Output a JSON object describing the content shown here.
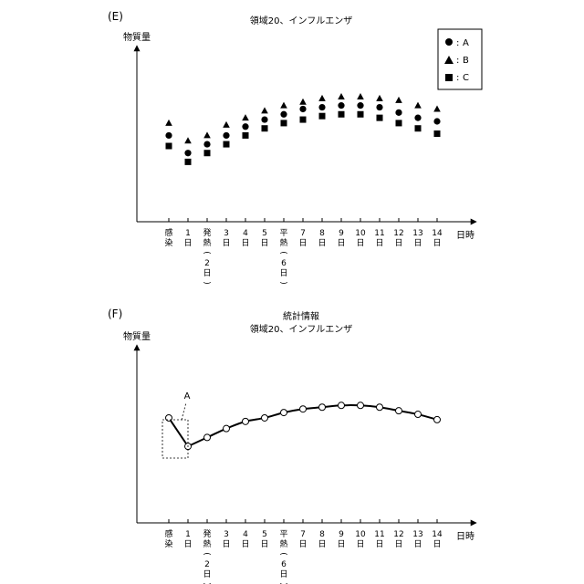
{
  "panels": {
    "e": {
      "label": "(E)"
    },
    "f": {
      "label": "(F)"
    }
  },
  "chart_data": [
    {
      "type": "scatter",
      "title": "領域20、インフルエンザ",
      "ylabel": "物質量",
      "xlabel": "日時",
      "categories": [
        "感染",
        "1日",
        "発熱(2日)",
        "3日",
        "4日",
        "5日",
        "平熱(6日)",
        "7日",
        "8日",
        "9日",
        "10日",
        "11日",
        "12日",
        "13日",
        "14日"
      ],
      "tick_labels": [
        [
          "感",
          "染"
        ],
        [
          "1",
          "日"
        ],
        [
          "発",
          "熱",
          "(",
          "2",
          "日",
          ")"
        ],
        [
          "3",
          "日"
        ],
        [
          "4",
          "日"
        ],
        [
          "5",
          "日"
        ],
        [
          "平",
          "熱",
          "(",
          "6",
          "日",
          ")"
        ],
        [
          "7",
          "日"
        ],
        [
          "8",
          "日"
        ],
        [
          "9",
          "日"
        ],
        [
          "10",
          "日"
        ],
        [
          "11",
          "日"
        ],
        [
          "12",
          "日"
        ],
        [
          "13",
          "日"
        ],
        [
          "14",
          "日"
        ]
      ],
      "ylim": [
        0,
        100
      ],
      "grid": false,
      "legend_position": "top-right",
      "series": [
        {
          "name": "A",
          "marker": "circle",
          "values": [
            49,
            39,
            44,
            49,
            54,
            58,
            61,
            64,
            65,
            66,
            66,
            65,
            62,
            59,
            57
          ]
        },
        {
          "name": "B",
          "marker": "triangle",
          "values": [
            56,
            46,
            49,
            55,
            59,
            63,
            66,
            68,
            70,
            71,
            71,
            70,
            69,
            66,
            64
          ]
        },
        {
          "name": "C",
          "marker": "square",
          "values": [
            43,
            34,
            39,
            44,
            49,
            53,
            56,
            58,
            60,
            61,
            61,
            59,
            56,
            53,
            50
          ]
        }
      ],
      "legend_separator": ":"
    },
    {
      "type": "line",
      "title": "統計情報",
      "subtitle": "領域20、インフルエンザ",
      "ylabel": "物質量",
      "xlabel": "日時",
      "categories": [
        "感染",
        "1日",
        "発熱(2日)",
        "3日",
        "4日",
        "5日",
        "平熱(6日)",
        "7日",
        "8日",
        "9日",
        "10日",
        "11日",
        "12日",
        "13日",
        "14日"
      ],
      "tick_labels": [
        [
          "感",
          "染"
        ],
        [
          "1",
          "日"
        ],
        [
          "発",
          "熱",
          "(",
          "2",
          "日",
          ")"
        ],
        [
          "3",
          "日"
        ],
        [
          "4",
          "日"
        ],
        [
          "5",
          "日"
        ],
        [
          "平",
          "熱",
          "(",
          "6",
          "日",
          ")"
        ],
        [
          "7",
          "日"
        ],
        [
          "8",
          "日"
        ],
        [
          "9",
          "日"
        ],
        [
          "10",
          "日"
        ],
        [
          "11",
          "日"
        ],
        [
          "12",
          "日"
        ],
        [
          "13",
          "日"
        ],
        [
          "14",
          "日"
        ]
      ],
      "ylim": [
        0,
        100
      ],
      "grid": false,
      "series": [
        {
          "values": [
            59,
            43,
            48,
            53,
            57,
            59,
            62,
            64,
            65,
            66,
            66,
            65,
            63,
            61,
            58
          ]
        }
      ],
      "annotation": {
        "text": "A",
        "target_category": "感染"
      }
    }
  ]
}
